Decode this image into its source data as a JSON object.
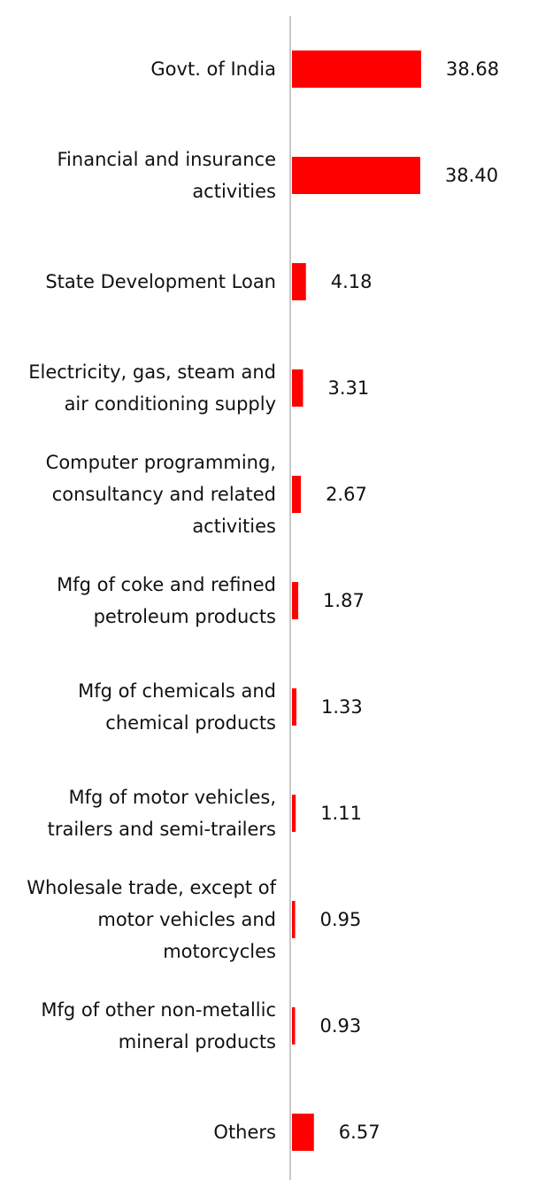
{
  "chart_data": {
    "type": "bar",
    "orientation": "horizontal",
    "categories": [
      "Govt. of India",
      "Financial and insurance activities",
      "State Development Loan",
      "Electricity, gas, steam and air conditioning supply",
      "Computer programming, consultancy and related activities",
      "Mfg of coke and refined petroleum products",
      "Mfg of chemicals and chemical products",
      "Mfg of motor vehicles, trailers and semi-trailers",
      "Wholesale trade, except of motor vehicles and motorcycles",
      "Mfg of other non-metallic mineral products",
      "Others"
    ],
    "category_lines": [
      [
        "Govt. of India"
      ],
      [
        "Financial and insurance",
        "activities"
      ],
      [
        "State Development Loan"
      ],
      [
        "Electricity, gas, steam and",
        "air conditioning supply"
      ],
      [
        "Computer programming,",
        "consultancy and related",
        "activities"
      ],
      [
        "Mfg of coke and refined",
        "petroleum products"
      ],
      [
        "Mfg of chemicals and",
        "chemical products"
      ],
      [
        "Mfg of motor vehicles,",
        "trailers and semi-trailers"
      ],
      [
        "Wholesale trade, except of",
        "motor vehicles and",
        "motorcycles"
      ],
      [
        "Mfg of other non-metallic",
        "mineral products"
      ],
      [
        "Others"
      ]
    ],
    "values": [
      38.68,
      38.4,
      4.18,
      3.31,
      2.67,
      1.87,
      1.33,
      1.11,
      0.95,
      0.93,
      6.57
    ],
    "value_labels": [
      "38.68",
      "38.40",
      "4.18",
      "3.31",
      "2.67",
      "1.87",
      "1.33",
      "1.11",
      "0.95",
      "0.93",
      "6.57"
    ],
    "title": "",
    "xlabel": "",
    "ylabel": "",
    "xlim": [
      0,
      38.68
    ],
    "grid": false,
    "legend": "none",
    "bar_color": "#ff0000",
    "axis_color": "#c8c8c8",
    "text_color": "#111111"
  }
}
